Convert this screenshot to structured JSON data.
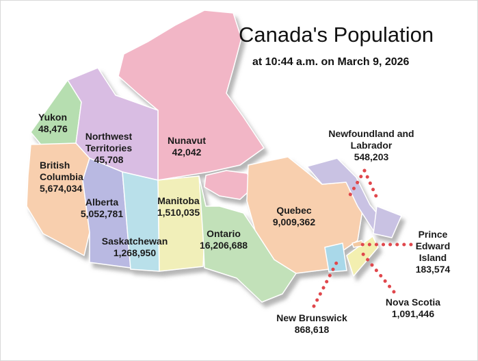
{
  "title": "Canada's Population",
  "subtitle": "at 10:44 a.m. on March 9, 2026",
  "regions": [
    {
      "name": "Yukon",
      "population": "48,476"
    },
    {
      "name": "Northwest Territories",
      "population": "45,708"
    },
    {
      "name": "Nunavut",
      "population": "42,042"
    },
    {
      "name": "British Columbia",
      "population": "5,674,034"
    },
    {
      "name": "Alberta",
      "population": "5,052,781"
    },
    {
      "name": "Saskatchewan",
      "population": "1,268,950"
    },
    {
      "name": "Manitoba",
      "population": "1,510,035"
    },
    {
      "name": "Ontario",
      "population": "16,206,688"
    },
    {
      "name": "Quebec",
      "population": "9,009,362"
    },
    {
      "name": "Newfoundland and Labrador",
      "population": "548,203"
    },
    {
      "name": "New Brunswick",
      "population": "868,618"
    },
    {
      "name": "Nova Scotia",
      "population": "1,091,446"
    },
    {
      "name": "Prince Edward Island",
      "population": "183,574"
    }
  ]
}
